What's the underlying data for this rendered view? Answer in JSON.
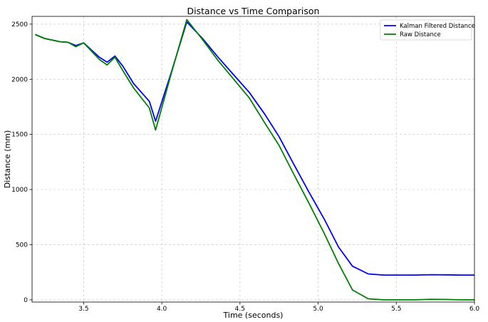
{
  "chart_data": {
    "type": "line",
    "title": "Distance vs Time Comparison",
    "xlabel": "Time (seconds)",
    "ylabel": "Distance (mm)",
    "xlim": [
      3.17,
      6.0
    ],
    "ylim": [
      -20,
      2570
    ],
    "xticks": [
      3.5,
      4.0,
      4.5,
      5.0,
      5.5,
      6.0
    ],
    "xtick_labels": [
      "3.5",
      "4.0",
      "4.5",
      "5.0",
      "5.5",
      "6.0"
    ],
    "yticks": [
      0,
      500,
      1000,
      1500,
      2000,
      2500
    ],
    "ytick_labels": [
      "0",
      "500",
      "1000",
      "1500",
      "2000",
      "2500"
    ],
    "grid": true,
    "legend_position": "upper right",
    "series": [
      {
        "name": "Kalman Filtered Distance",
        "color": "#0000ff",
        "x": [
          3.19,
          3.25,
          3.35,
          3.4,
          3.45,
          3.5,
          3.6,
          3.65,
          3.7,
          3.75,
          3.82,
          3.92,
          3.96,
          4.06,
          4.16,
          4.26,
          4.36,
          4.46,
          4.56,
          4.66,
          4.75,
          4.84,
          4.94,
          5.04,
          5.13,
          5.22,
          5.32,
          5.42,
          5.52,
          5.62,
          5.72,
          5.82,
          5.92,
          6.0
        ],
        "y": [
          2405,
          2370,
          2340,
          2335,
          2305,
          2330,
          2200,
          2155,
          2210,
          2120,
          1960,
          1800,
          1620,
          2060,
          2520,
          2370,
          2200,
          2040,
          1880,
          1680,
          1480,
          1240,
          980,
          730,
          480,
          305,
          235,
          225,
          225,
          225,
          228,
          227,
          225,
          225
        ]
      },
      {
        "name": "Raw Distance",
        "color": "#008000",
        "x": [
          3.19,
          3.25,
          3.35,
          3.4,
          3.45,
          3.5,
          3.6,
          3.65,
          3.7,
          3.75,
          3.82,
          3.92,
          3.96,
          4.06,
          4.16,
          4.26,
          4.36,
          4.46,
          4.56,
          4.66,
          4.75,
          4.84,
          4.94,
          5.04,
          5.13,
          5.22,
          5.32,
          5.42,
          5.52,
          5.62,
          5.72,
          5.82,
          5.92,
          6.0
        ],
        "y": [
          2405,
          2370,
          2340,
          2335,
          2295,
          2330,
          2180,
          2130,
          2200,
          2080,
          1920,
          1740,
          1540,
          2050,
          2540,
          2360,
          2170,
          2000,
          1830,
          1600,
          1400,
          1150,
          880,
          600,
          330,
          90,
          10,
          0,
          0,
          0,
          5,
          3,
          0,
          0
        ]
      }
    ]
  }
}
